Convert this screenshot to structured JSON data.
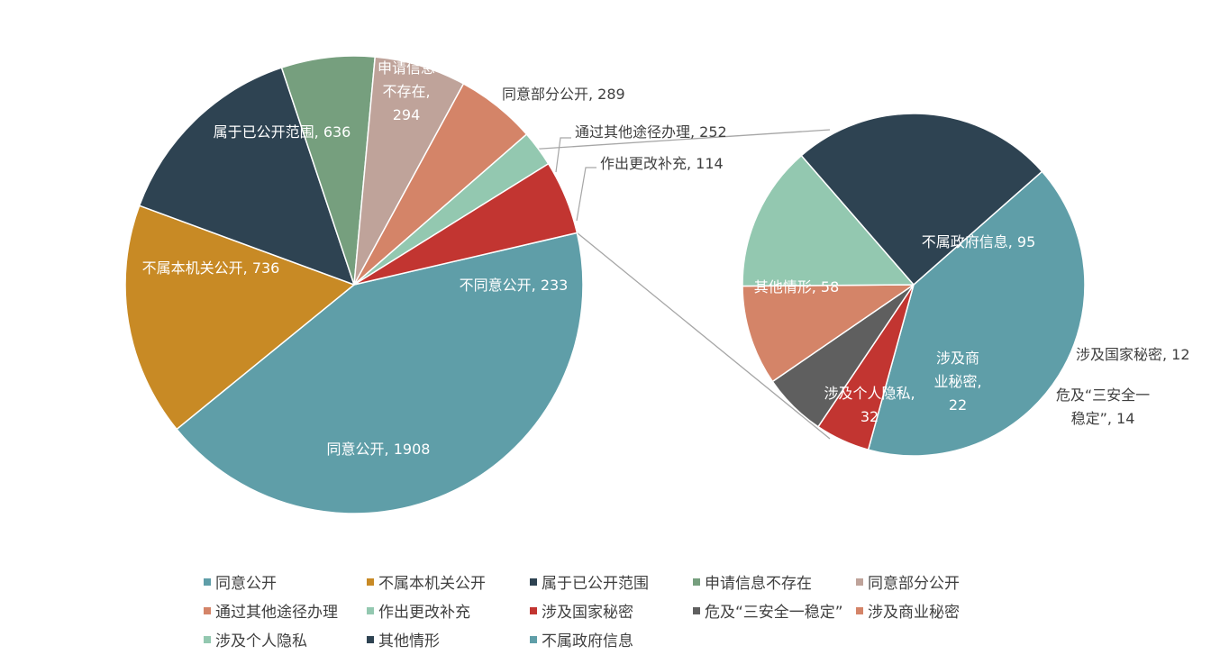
{
  "chart_data": {
    "type": "pie",
    "subtype": "pie-of-pie",
    "main_pie": {
      "slices": [
        {
          "key": "agree",
          "label": "同意公开",
          "value": 1908,
          "color": "#5f9ea8",
          "text": "同意公开, 1908",
          "label_pos": "inside"
        },
        {
          "key": "not_this_org",
          "label": "不属本机关公开",
          "value": 736,
          "color": "#c88a25",
          "text": "不属本机关公开, 736",
          "label_pos": "inside"
        },
        {
          "key": "published",
          "label": "属于已公开范围",
          "value": 636,
          "color": "#2e4352",
          "text": "属于已公开范围, 636",
          "label_pos": "inside"
        },
        {
          "key": "not_exist",
          "label": "申请信息不存在",
          "value": 294,
          "color": "#769f7e",
          "text": "申请信息\n不存在,\n294",
          "label_pos": "inside"
        },
        {
          "key": "partial",
          "label": "同意部分公开",
          "value": 289,
          "color": "#bfa39a",
          "text": "同意部分公开, 289",
          "label_pos": "outside"
        },
        {
          "key": "other_channel",
          "label": "通过其他途径办理",
          "value": 252,
          "color": "#d48468",
          "text": "通过其他途径办理, 252",
          "label_pos": "outside"
        },
        {
          "key": "correction",
          "label": "作出更改补充",
          "value": 114,
          "color": "#93c8b0",
          "text": "作出更改补充, 114",
          "label_pos": "outside"
        },
        {
          "key": "disagree",
          "label": "不同意公开",
          "value": 233,
          "color": "#c23531",
          "text": "不同意公开, 233",
          "label_pos": "inside"
        }
      ]
    },
    "secondary_pie": {
      "source_slice": "不同意公开",
      "slices": [
        {
          "key": "non_gov",
          "label": "不属政府信息",
          "value": 95,
          "color": "#5f9ea8",
          "text": "不属政府信息, 95",
          "label_pos": "inside"
        },
        {
          "key": "state_secret",
          "label": "涉及国家秘密",
          "value": 12,
          "color": "#c23531",
          "text": "涉及国家秘密, 12",
          "label_pos": "outside"
        },
        {
          "key": "three_safety",
          "label": "危及“三安全一稳定”",
          "value": 14,
          "color": "#5f5f5f",
          "text": "危及“三安全一\n稳定”, 14",
          "label_pos": "outside"
        },
        {
          "key": "business_secret",
          "label": "涉及商业秘密",
          "value": 22,
          "color": "#d48468",
          "text": "涉及商\n业秘密,\n22",
          "label_pos": "inside"
        },
        {
          "key": "privacy",
          "label": "涉及个人隐私",
          "value": 32,
          "color": "#93c8b0",
          "text": "涉及个人隐私,\n32",
          "label_pos": "inside"
        },
        {
          "key": "other",
          "label": "其他情形",
          "value": 58,
          "color": "#2e4352",
          "text": "其他情形, 58",
          "label_pos": "inside"
        }
      ]
    },
    "legend": {
      "position": "bottom",
      "items": [
        {
          "label": "同意公开",
          "color": "#5f9ea8"
        },
        {
          "label": "不属本机关公开",
          "color": "#c88a25"
        },
        {
          "label": "属于已公开范围",
          "color": "#2e4352"
        },
        {
          "label": "申请信息不存在",
          "color": "#769f7e"
        },
        {
          "label": "同意部分公开",
          "color": "#bfa39a"
        },
        {
          "label": "通过其他途径办理",
          "color": "#d48468"
        },
        {
          "label": "作出更改补充",
          "color": "#93c8b0"
        },
        {
          "label": "涉及国家秘密",
          "color": "#c23531"
        },
        {
          "label": "危及“三安全一稳定”",
          "color": "#5f5f5f"
        },
        {
          "label": "涉及商业秘密",
          "color": "#d48468"
        },
        {
          "label": "涉及个人隐私",
          "color": "#93c8b0"
        },
        {
          "label": "其他情形",
          "color": "#2e4352"
        },
        {
          "label": "不属政府信息",
          "color": "#5f9ea8"
        }
      ]
    }
  }
}
